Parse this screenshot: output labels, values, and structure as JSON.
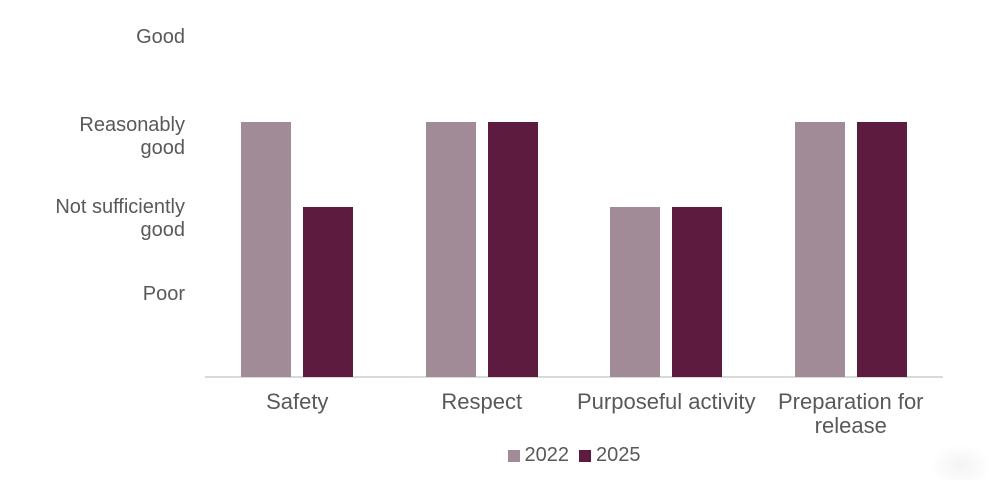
{
  "chart_data": {
    "type": "bar",
    "title": "",
    "categories": [
      "Safety",
      "Respect",
      "Purposeful activity",
      "Preparation for release"
    ],
    "y_tick_labels": [
      "Good",
      "Reasonably good",
      "Not sufficiently good",
      "Poor"
    ],
    "y_tick_values": [
      4,
      3,
      2,
      1
    ],
    "ylim": [
      0,
      4
    ],
    "grid": false,
    "legend_position": "bottom-center",
    "series": [
      {
        "name": "2022",
        "color": "#a08b96",
        "values": [
          3,
          3,
          2,
          3
        ],
        "ratings": [
          "Reasonably good",
          "Reasonably good",
          "Not sufficiently good",
          "Reasonably good"
        ]
      },
      {
        "name": "2025",
        "color": "#5e1b40",
        "values": [
          2,
          3,
          2,
          3
        ],
        "ratings": [
          "Not sufficiently good",
          "Reasonably good",
          "Not sufficiently good",
          "Reasonably good"
        ]
      }
    ]
  },
  "colors": {
    "axis_line": "#d9d9d9",
    "text": "#595959",
    "background": "#ffffff"
  }
}
